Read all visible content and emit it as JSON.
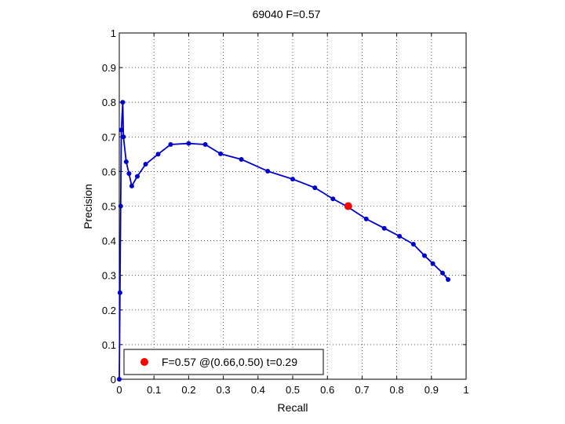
{
  "chart_data": {
    "type": "line",
    "title": "69040 F=0.57",
    "xlabel": "Recall",
    "ylabel": "Precision",
    "xlim": [
      0,
      1
    ],
    "ylim": [
      0,
      1
    ],
    "grid": true,
    "xticks": [
      0,
      0.1,
      0.2,
      0.3,
      0.4,
      0.5,
      0.6,
      0.7,
      0.8,
      0.9,
      1
    ],
    "yticks": [
      0,
      0.1,
      0.2,
      0.3,
      0.4,
      0.5,
      0.6,
      0.7,
      0.8,
      0.9,
      1
    ],
    "xtick_labels": [
      "0",
      "0.1",
      "0.2",
      "0.3",
      "0.4",
      "0.5",
      "0.6",
      "0.7",
      "0.8",
      "0.9",
      "1"
    ],
    "ytick_labels": [
      "0",
      "0.1",
      "0.2",
      "0.3",
      "0.4",
      "0.5",
      "0.6",
      "0.7",
      "0.8",
      "0.9",
      "1"
    ],
    "series": [
      {
        "color": "#0000cc",
        "x": [
          0,
          0.002,
          0.004,
          0.006,
          0.01,
          0.012,
          0.02,
          0.028,
          0.036,
          0.052,
          0.076,
          0.112,
          0.148,
          0.2,
          0.248,
          0.292,
          0.352,
          0.428,
          0.5,
          0.564,
          0.616,
          0.66,
          0.712,
          0.764,
          0.808,
          0.848,
          0.88,
          0.904,
          0.932,
          0.948
        ],
        "y": [
          0,
          0.25,
          0.5,
          0.72,
          0.8,
          0.7,
          0.628,
          0.594,
          0.558,
          0.586,
          0.621,
          0.65,
          0.678,
          0.681,
          0.678,
          0.651,
          0.635,
          0.601,
          0.578,
          0.553,
          0.521,
          0.497,
          0.463,
          0.436,
          0.413,
          0.39,
          0.357,
          0.334,
          0.307,
          0.288
        ]
      }
    ],
    "best_point": {
      "x": 0.66,
      "y": 0.5,
      "color": "#ff0000"
    },
    "legend": {
      "text": "F=0.57 @(0.66,0.50) t=0.29",
      "placement": "bottom-left"
    }
  }
}
